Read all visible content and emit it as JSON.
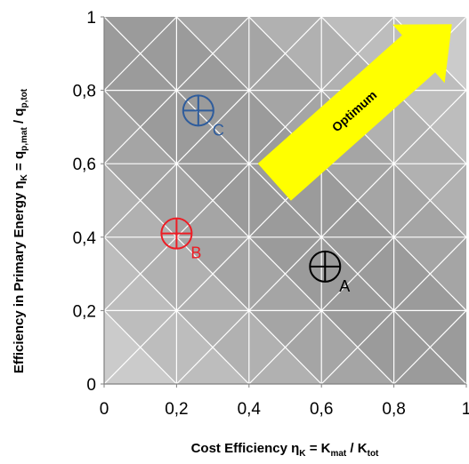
{
  "chart_data": {
    "type": "scatter",
    "xlabel": {
      "main": "Cost Efficiency  η",
      "s1": "K",
      "eq": " = K",
      "s2": "mat",
      "div": " / K",
      "s3": "tot"
    },
    "ylabel": {
      "main": "Efficiency in Primary Energy  η",
      "s1": "K",
      "eq": " = q",
      "s2": "p,mat",
      "div": " / q",
      "s3": "p,tot"
    },
    "xlim": [
      0,
      1
    ],
    "ylim": [
      0,
      1
    ],
    "x_ticks": [
      {
        "value": 0,
        "label": "0"
      },
      {
        "value": 0.2,
        "label": "0,2"
      },
      {
        "value": 0.4,
        "label": "0,4"
      },
      {
        "value": 0.6,
        "label": "0,6"
      },
      {
        "value": 0.8,
        "label": "0,8"
      },
      {
        "value": 1,
        "label": "1"
      }
    ],
    "y_ticks": [
      {
        "value": 0,
        "label": "0"
      },
      {
        "value": 0.2,
        "label": "0,2"
      },
      {
        "value": 0.4,
        "label": "0,4"
      },
      {
        "value": 0.6,
        "label": "0,6"
      },
      {
        "value": 0.8,
        "label": "0,8"
      },
      {
        "value": 1,
        "label": "1"
      }
    ],
    "grid": true,
    "points": [
      {
        "label": "A",
        "x": 0.61,
        "y": 0.32,
        "color": "#000000"
      },
      {
        "label": "B",
        "x": 0.2,
        "y": 0.41,
        "color": "#ee1c24"
      },
      {
        "label": "C",
        "x": 0.26,
        "y": 0.745,
        "color": "#2e5c9c"
      }
    ],
    "arrow": {
      "label": "Optimum",
      "from": [
        0.47,
        0.55
      ],
      "to": [
        0.96,
        0.98
      ],
      "color": "#ffff00"
    },
    "band_colors": [
      "#cbcbcb",
      "#bdbdbd",
      "#b1b1b1",
      "#a5a5a5",
      "#9b9b9b"
    ]
  }
}
